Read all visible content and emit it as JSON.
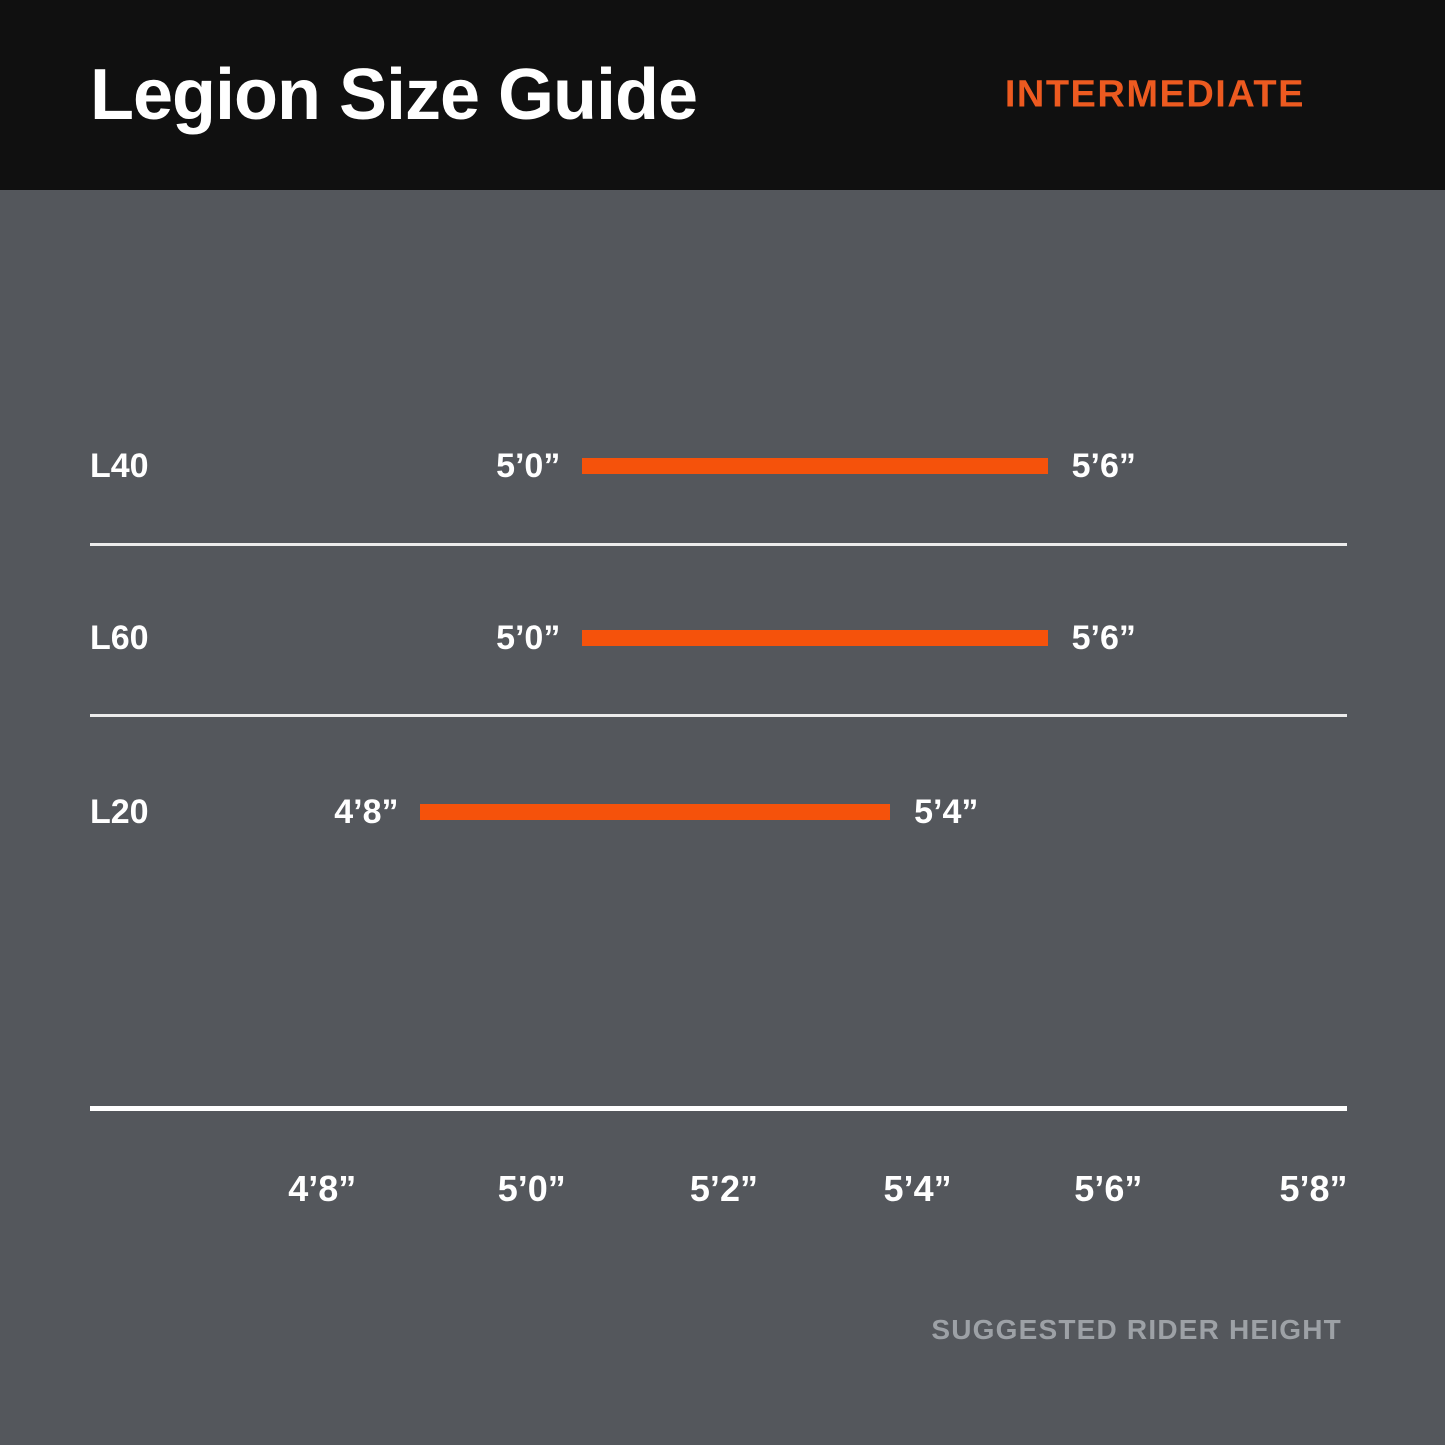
{
  "header": {
    "title": "Legion Size Guide",
    "badge": "INTERMEDIATE"
  },
  "colors": {
    "accent": "#F5520B",
    "accent_text": "#ED5A20",
    "header_bg": "#101010",
    "body_bg": "#54575C",
    "text": "#FFFFFF",
    "muted_text": "#9DA1A6"
  },
  "rows": [
    {
      "model": "L40",
      "min": "5’0”",
      "max": "5’6”",
      "bar_left_pct": 40.3,
      "bar_width_pct": 32.2
    },
    {
      "model": "L60",
      "min": "5’0”",
      "max": "5’6”",
      "bar_left_pct": 40.3,
      "bar_width_pct": 32.2
    },
    {
      "model": "L20",
      "min": "4’8”",
      "max": "5’4”",
      "bar_left_pct": 29.1,
      "bar_width_pct": 32.5
    }
  ],
  "axis": {
    "ticks": [
      "4’8”",
      "5’0”",
      "5’2”",
      "5’4”",
      "5’6”",
      "5’8”"
    ],
    "tick_centers_pct": [
      22.3,
      36.8,
      50.1,
      63.5,
      76.7,
      90.9
    ],
    "caption": "SUGGESTED RIDER HEIGHT"
  },
  "chart_data": {
    "type": "bar",
    "subtype": "horizontal-range",
    "title": "Legion Size Guide",
    "subtitle": "INTERMEDIATE",
    "xlabel": "SUGGESTED RIDER HEIGHT",
    "x_tick_labels": [
      "4'8\"",
      "5'0\"",
      "5'2\"",
      "5'4\"",
      "5'6\"",
      "5'8\""
    ],
    "categories": [
      "L40",
      "L60",
      "L20"
    ],
    "series": [
      {
        "name": "L40",
        "range_labels": [
          "5'0\"",
          "5'6\""
        ],
        "range_inches": [
          60,
          66
        ]
      },
      {
        "name": "L60",
        "range_labels": [
          "5'0\"",
          "5'6\""
        ],
        "range_inches": [
          60,
          66
        ]
      },
      {
        "name": "L20",
        "range_labels": [
          "4'8\"",
          "5'4\""
        ],
        "range_inches": [
          56,
          64
        ]
      }
    ],
    "bar_color": "#F5520B",
    "grid": "row dividers only",
    "legend": "none"
  }
}
